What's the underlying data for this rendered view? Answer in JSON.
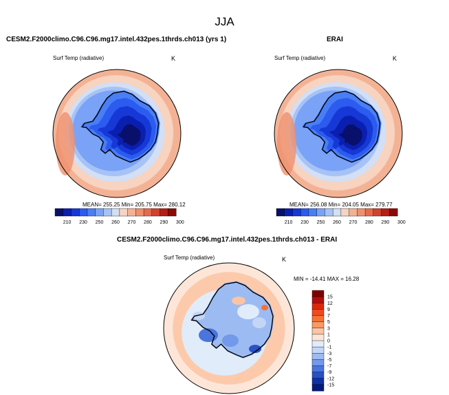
{
  "figure_title": "JJA",
  "panels": [
    {
      "title": "CESM2.F2000climo.C96.C96.mg17.intel.432pes.1thrds.ch013 (yrs 1)",
      "variable": "Surf Temp (radiative)",
      "units": "K",
      "stats": "MEAN= 255.25  Min= 205.75  Max= 280.12"
    },
    {
      "title": "ERAI",
      "variable": "Surf Temp (radiative)",
      "units": "K",
      "stats": "MEAN= 256.08  Min= 204.05  Max= 279.77"
    },
    {
      "title": "CESM2.F2000climo.C96.C96.mg17.intel.432pes.1thrds.ch013 - ERAI",
      "variable": "Surf Temp (radiative)",
      "units": "K",
      "stats": "MIN = -14.41  MAX =  16.28"
    }
  ],
  "chart_data": [
    {
      "type": "heatmap",
      "projection": "south-polar-stereographic",
      "title": "CESM2.F2000climo.C96.C96.mg17.intel.432pes.1thrds.ch013 (yrs 1)",
      "variable": "Surf Temp (radiative)",
      "units": "K",
      "mean": 255.25,
      "min": 205.75,
      "max": 280.12,
      "colorbar_levels": [
        210,
        230,
        250,
        260,
        270,
        280,
        290,
        300
      ],
      "colorbar_colors": [
        "#08106b",
        "#0a1fb0",
        "#1638d6",
        "#2c5bef",
        "#4a7ef5",
        "#7aa3f7",
        "#a7c3f6",
        "#d2dff5",
        "#f7d3c0",
        "#f4b295",
        "#ef906d",
        "#e66b4b",
        "#d2432d",
        "#b51f14",
        "#8c0a06"
      ],
      "contour_levels": [
        210,
        220,
        230,
        240,
        250,
        255,
        260,
        265,
        270,
        275,
        280
      ]
    },
    {
      "type": "heatmap",
      "projection": "south-polar-stereographic",
      "title": "ERAI",
      "variable": "Surf Temp (radiative)",
      "units": "K",
      "mean": 256.08,
      "min": 204.05,
      "max": 279.77,
      "colorbar_levels": [
        210,
        230,
        250,
        260,
        270,
        280,
        290,
        300
      ],
      "colorbar_colors": [
        "#08106b",
        "#0a1fb0",
        "#1638d6",
        "#2c5bef",
        "#4a7ef5",
        "#7aa3f7",
        "#a7c3f6",
        "#d2dff5",
        "#f7d3c0",
        "#f4b295",
        "#ef906d",
        "#e66b4b",
        "#d2432d",
        "#b51f14",
        "#8c0a06"
      ],
      "contour_levels": [
        210,
        220,
        230,
        240,
        250,
        255,
        260,
        265,
        270,
        275,
        280
      ]
    },
    {
      "type": "heatmap",
      "projection": "south-polar-stereographic",
      "title": "CESM2.F2000climo.C96.C96.mg17.intel.432pes.1thrds.ch013 - ERAI",
      "variable": "Surf Temp (radiative)",
      "units": "K",
      "min": -14.41,
      "max": 16.28,
      "colorbar_levels": [
        15,
        12,
        9,
        7,
        5,
        3,
        1,
        0,
        -1,
        -3,
        -5,
        -7,
        -9,
        -12,
        -15
      ],
      "colorbar_colors": [
        "#800000",
        "#b30d0d",
        "#d8290f",
        "#ef4a1d",
        "#f57138",
        "#f89a64",
        "#fbc4a3",
        "#fde6d8",
        "#e0ecfa",
        "#c3d6f6",
        "#9cbbf2",
        "#7299ea",
        "#4a75dd",
        "#2a50c6",
        "#1030a5",
        "#061a7d"
      ]
    }
  ]
}
